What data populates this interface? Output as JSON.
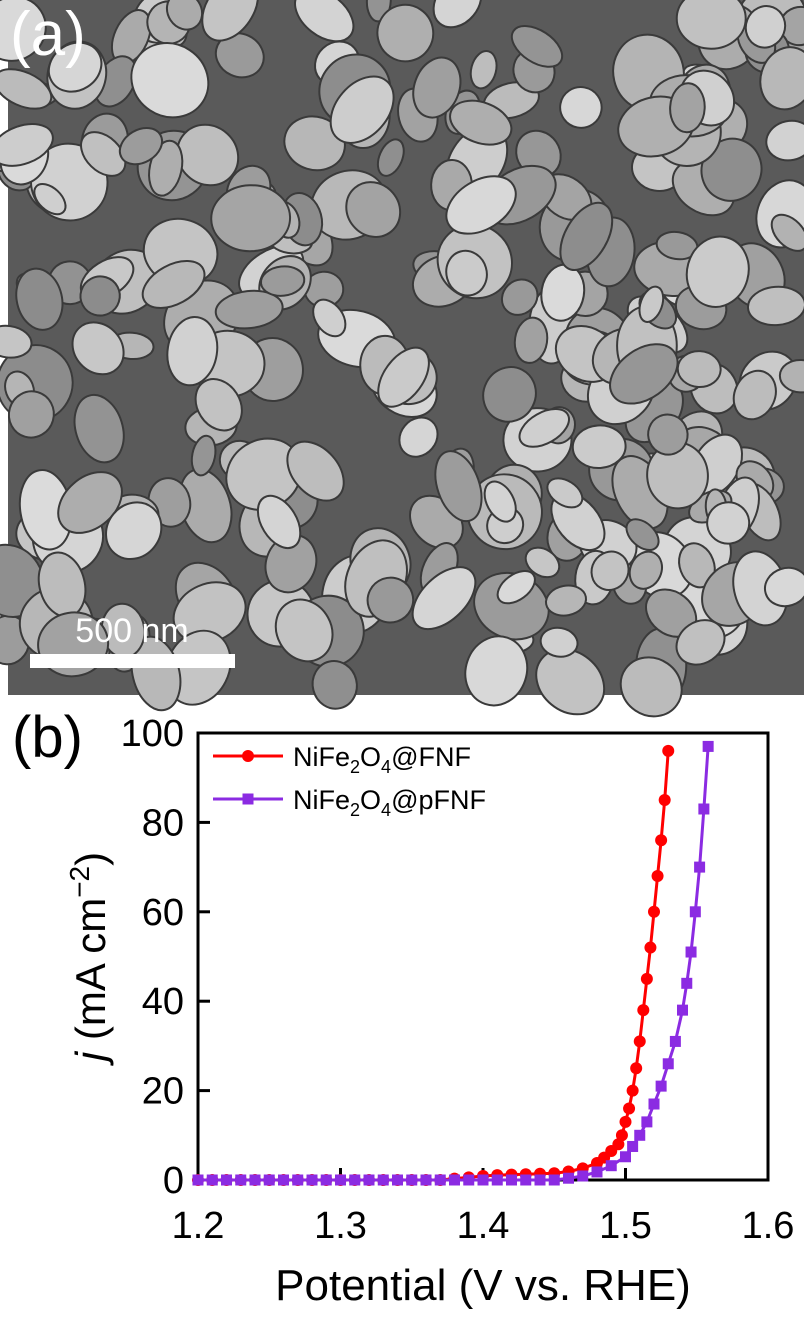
{
  "image_panel": {
    "label": "(a)",
    "scale_bar": "500 nm"
  },
  "chart_data": {
    "type": "line",
    "panel_label": "(b)",
    "xlabel": "Potential (V vs. RHE)",
    "ylabel": "j (mA cm−2)",
    "xlim": [
      1.2,
      1.6
    ],
    "ylim": [
      0,
      100
    ],
    "xticks": [
      1.2,
      1.3,
      1.4,
      1.5,
      1.6
    ],
    "yticks": [
      0,
      20,
      40,
      60,
      80,
      100
    ],
    "legend": "upper left",
    "series": [
      {
        "name": "NiFe2O4@FNF",
        "color": "#ff0000",
        "marker": "circle",
        "x": [
          1.2,
          1.21,
          1.22,
          1.23,
          1.24,
          1.25,
          1.26,
          1.27,
          1.28,
          1.29,
          1.3,
          1.31,
          1.32,
          1.33,
          1.34,
          1.35,
          1.36,
          1.37,
          1.38,
          1.39,
          1.4,
          1.41,
          1.42,
          1.43,
          1.44,
          1.45,
          1.46,
          1.47,
          1.48,
          1.485,
          1.49,
          1.495,
          1.4975,
          1.5,
          1.5025,
          1.505,
          1.5075,
          1.51,
          1.5125,
          1.515,
          1.5175,
          1.52,
          1.5225,
          1.525,
          1.5275,
          1.53
        ],
        "values": [
          0,
          0,
          0,
          0,
          0,
          0,
          0,
          0,
          0,
          0,
          0,
          0,
          0,
          0,
          0,
          0,
          0,
          0,
          0.3,
          0.6,
          0.9,
          1.1,
          1.2,
          1.3,
          1.4,
          1.5,
          1.9,
          2.6,
          3.8,
          5,
          6.5,
          8,
          10,
          13,
          16,
          20,
          25,
          31,
          38,
          45,
          52,
          60,
          68,
          76,
          85,
          96
        ]
      },
      {
        "name": "NiFe2O4@pFNF",
        "color": "#8b2be2",
        "marker": "square",
        "x": [
          1.2,
          1.21,
          1.22,
          1.23,
          1.24,
          1.25,
          1.26,
          1.27,
          1.28,
          1.29,
          1.3,
          1.31,
          1.32,
          1.33,
          1.34,
          1.35,
          1.36,
          1.37,
          1.38,
          1.39,
          1.4,
          1.41,
          1.42,
          1.43,
          1.44,
          1.45,
          1.46,
          1.47,
          1.48,
          1.49,
          1.5,
          1.505,
          1.51,
          1.515,
          1.52,
          1.525,
          1.53,
          1.535,
          1.54,
          1.543,
          1.546,
          1.549,
          1.552,
          1.555,
          1.558
        ],
        "values": [
          0,
          0,
          0,
          0,
          0,
          0,
          0,
          0,
          0,
          0,
          0,
          0,
          0,
          0,
          0,
          0,
          0,
          0,
          0,
          0,
          0,
          0,
          0,
          0,
          0,
          0,
          0.4,
          0.9,
          1.8,
          3.2,
          5.2,
          7.5,
          10,
          13,
          17,
          21,
          26,
          31,
          38,
          44,
          51,
          60,
          70,
          83,
          97
        ]
      }
    ]
  }
}
